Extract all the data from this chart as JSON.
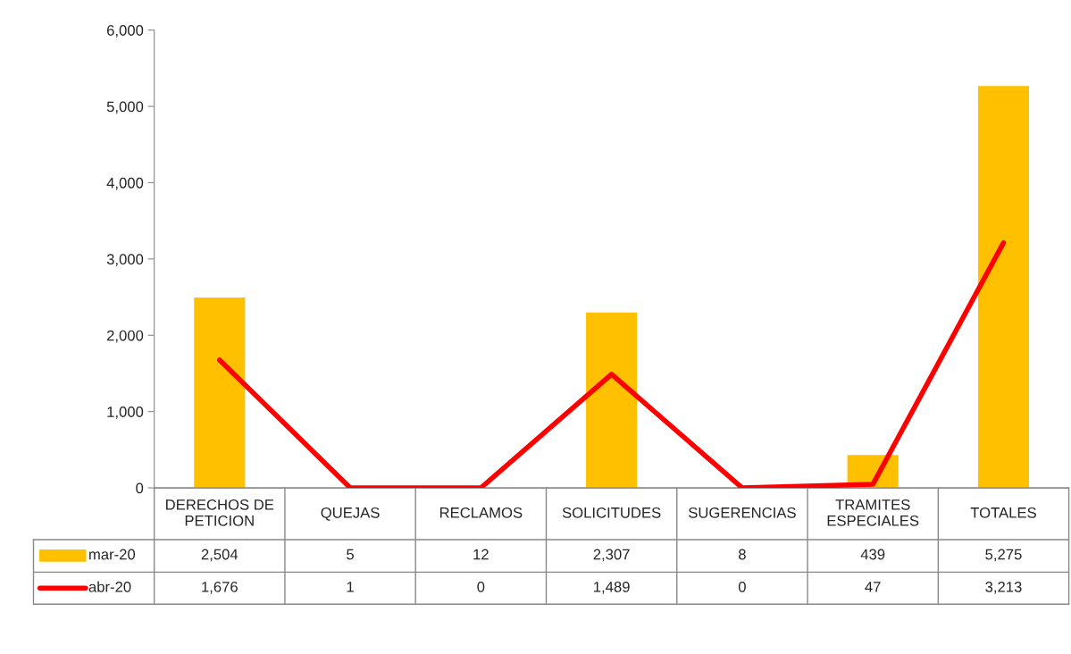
{
  "chart_data": {
    "type": "bar",
    "categories": [
      "DERECHOS DE\nPETICION",
      "QUEJAS",
      "RECLAMOS",
      "SOLICITUDES",
      "SUGERENCIAS",
      "TRAMITES\nESPECIALES",
      "TOTALES"
    ],
    "series": [
      {
        "name": "mar-20",
        "color": "#ffc000",
        "values": [
          2504,
          5,
          12,
          2307,
          8,
          439,
          5275
        ],
        "value_labels": [
          "2,504",
          "5",
          "12",
          "2,307",
          "8",
          "439",
          "5,275"
        ]
      },
      {
        "name": "abr-20",
        "type": "line",
        "color": "#ff0000",
        "values": [
          1676,
          1,
          0,
          1489,
          0,
          47,
          3213
        ],
        "value_labels": [
          "1,676",
          "1",
          "0",
          "1,489",
          "0",
          "47",
          "3,213"
        ]
      }
    ],
    "ylim": [
      0,
      6000
    ],
    "yticks": [
      0,
      {
        "value": 1000,
        "label": "1,000"
      },
      {
        "value": 2000,
        "label": "2,000"
      },
      {
        "value": 3000,
        "label": "3,000"
      },
      {
        "value": 4000,
        "label": "4,000"
      },
      {
        "value": 5000,
        "label": "5,000"
      },
      {
        "value": 6000,
        "label": "6,000"
      }
    ],
    "legend": "bottom left",
    "grid": false
  }
}
